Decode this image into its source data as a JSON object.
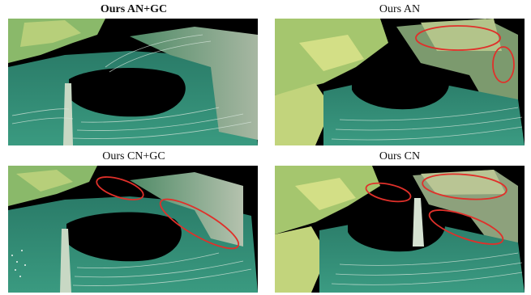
{
  "figure": {
    "panels": [
      {
        "title": "Ours AN+GC",
        "emphasis": "bold"
      },
      {
        "title": "Ours AN",
        "emphasis": "normal"
      },
      {
        "title": "Ours CN+GC",
        "emphasis": "normal"
      },
      {
        "title": "Ours CN",
        "emphasis": "normal"
      }
    ],
    "colors": {
      "road": "#2f8a73",
      "road_dark": "#1f5e50",
      "wall": "#5e8f6a",
      "vegetation": "#9fc46a",
      "scan_lines": "#d9e8de",
      "background": "#000000",
      "highlight_ellipse": "#e0302a"
    }
  }
}
